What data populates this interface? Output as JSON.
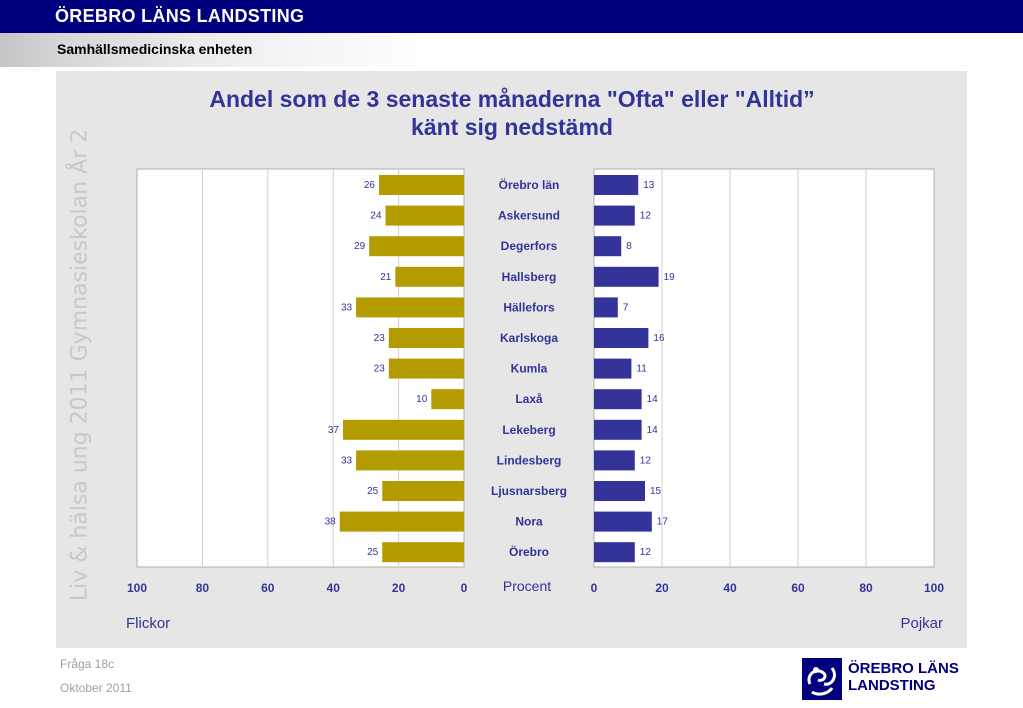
{
  "header": {
    "title": "ÖREBRO LÄNS LANDSTING",
    "subtitle": "Samhällsmedicinska enheten"
  },
  "side_text": "Liv & hälsa ung 2011 Gymnasieskolan År 2",
  "footer": {
    "question": "Fråga 18c",
    "date": "Oktober 2011"
  },
  "logo": {
    "line1": "ÖREBRO LÄNS",
    "line2": "LANDSTING"
  },
  "colors": {
    "header_bg": "#00007e",
    "girls_bar": "#b39b00",
    "boys_bar": "#333399",
    "title": "#333399",
    "panel_bg": "#e6e6e6"
  },
  "chart_data": {
    "type": "bar",
    "orientation": "horizontal-butterfly",
    "title": "Andel som de 3 senaste månaderna \"Ofta\" eller \"Alltid”",
    "title_line2": "känt sig nedstämd",
    "categories": [
      "Örebro län",
      "Askersund",
      "Degerfors",
      "Hallsberg",
      "Hällefors",
      "Karlskoga",
      "Kumla",
      "Laxå",
      "Lekeberg",
      "Lindesberg",
      "Ljusnarsberg",
      "Nora",
      "Örebro"
    ],
    "series": [
      {
        "name": "Flickor",
        "values": [
          26,
          24,
          29,
          21,
          33,
          23,
          23,
          10,
          37,
          33,
          25,
          38,
          25
        ]
      },
      {
        "name": "Pojkar",
        "values": [
          13,
          12,
          8,
          19,
          7,
          16,
          11,
          14,
          14,
          12,
          15,
          17,
          12
        ]
      }
    ],
    "xlabel": "Procent",
    "xlim": [
      0,
      100
    ],
    "x_ticks": [
      0,
      20,
      40,
      60,
      80,
      100
    ],
    "grid": true
  }
}
